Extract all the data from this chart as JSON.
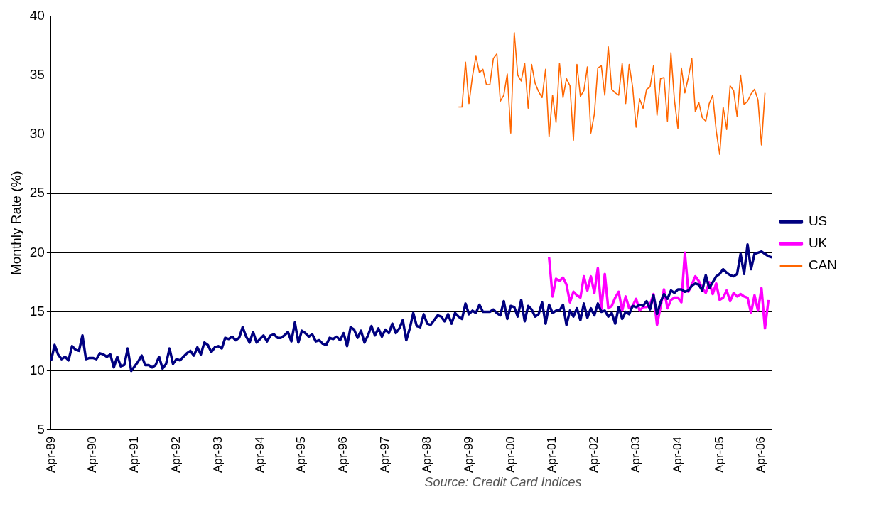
{
  "chart_data": {
    "type": "line",
    "ylabel": "Monthly Rate (%)",
    "ylim": [
      5,
      40
    ],
    "yticks": [
      5,
      10,
      15,
      20,
      25,
      30,
      35,
      40
    ],
    "grid": "y",
    "legend": "right",
    "marker": "none",
    "annotations": [
      "Source: Credit Card Indices"
    ],
    "categories": [
      "Apr-89",
      null,
      null,
      null,
      null,
      null,
      null,
      null,
      null,
      null,
      null,
      null,
      "Apr-90",
      null,
      null,
      null,
      null,
      null,
      null,
      null,
      null,
      null,
      null,
      null,
      "Apr-91",
      null,
      null,
      null,
      null,
      null,
      null,
      null,
      null,
      null,
      null,
      null,
      "Apr-92",
      null,
      null,
      null,
      null,
      null,
      null,
      null,
      null,
      null,
      null,
      null,
      "Apr-93",
      null,
      null,
      null,
      null,
      null,
      null,
      null,
      null,
      null,
      null,
      null,
      "Apr-94",
      null,
      null,
      null,
      null,
      null,
      null,
      null,
      null,
      null,
      null,
      null,
      "Apr-95",
      null,
      null,
      null,
      null,
      null,
      null,
      null,
      null,
      null,
      null,
      null,
      "Apr-96",
      null,
      null,
      null,
      null,
      null,
      null,
      null,
      null,
      null,
      null,
      null,
      "Apr-97",
      null,
      null,
      null,
      null,
      null,
      null,
      null,
      null,
      null,
      null,
      null,
      "Apr-98",
      null,
      null,
      null,
      null,
      null,
      null,
      null,
      null,
      null,
      null,
      null,
      "Apr-99",
      null,
      null,
      null,
      null,
      null,
      null,
      null,
      null,
      null,
      null,
      null,
      "Apr-00",
      null,
      null,
      null,
      null,
      null,
      null,
      null,
      null,
      null,
      null,
      null,
      "Apr-01",
      null,
      null,
      null,
      null,
      null,
      null,
      null,
      null,
      null,
      null,
      null,
      "Apr-02",
      null,
      null,
      null,
      null,
      null,
      null,
      null,
      null,
      null,
      null,
      null,
      "Apr-03",
      null,
      null,
      null,
      null,
      null,
      null,
      null,
      null,
      null,
      null,
      null,
      "Apr-04",
      null,
      null,
      null,
      null,
      null,
      null,
      null,
      null,
      null,
      null,
      null,
      "Apr-05",
      null,
      null,
      null,
      null,
      null,
      null,
      null,
      null,
      null,
      null,
      null,
      "Apr-06",
      null,
      null,
      null
    ],
    "series": [
      {
        "name": "US",
        "color": "#000080",
        "values": [
          10.9,
          12.2,
          11.4,
          11.0,
          11.2,
          10.9,
          12.1,
          11.8,
          11.7,
          13.0,
          11.0,
          11.1,
          11.1,
          11.0,
          11.5,
          11.4,
          11.2,
          11.4,
          10.3,
          11.2,
          10.4,
          10.5,
          11.9,
          10.0,
          10.4,
          10.8,
          11.3,
          10.5,
          10.5,
          10.3,
          10.5,
          11.2,
          10.2,
          10.6,
          11.9,
          10.6,
          11.0,
          10.9,
          11.2,
          11.5,
          11.7,
          11.3,
          12.0,
          11.4,
          12.4,
          12.2,
          11.6,
          12.0,
          12.1,
          11.9,
          12.8,
          12.7,
          12.9,
          12.6,
          12.8,
          13.7,
          12.9,
          12.4,
          13.3,
          12.4,
          12.7,
          13.0,
          12.5,
          13.0,
          13.1,
          12.8,
          12.8,
          13.0,
          13.3,
          12.5,
          14.1,
          12.4,
          13.4,
          13.2,
          12.9,
          13.1,
          12.5,
          12.6,
          12.3,
          12.2,
          12.8,
          12.7,
          12.9,
          12.6,
          13.2,
          12.1,
          13.7,
          13.5,
          12.8,
          13.4,
          12.4,
          13.0,
          13.8,
          13.0,
          13.6,
          12.9,
          13.5,
          13.2,
          14.0,
          13.2,
          13.6,
          14.3,
          12.6,
          13.6,
          14.9,
          13.8,
          13.7,
          14.8,
          14.0,
          13.9,
          14.3,
          14.7,
          14.6,
          14.2,
          14.8,
          14.0,
          14.9,
          14.6,
          14.4,
          15.7,
          14.8,
          15.1,
          14.9,
          15.6,
          15.0,
          15.0,
          15.0,
          15.2,
          14.9,
          14.7,
          15.9,
          14.4,
          15.5,
          15.4,
          14.6,
          16.0,
          14.2,
          15.5,
          15.2,
          14.6,
          14.8,
          15.8,
          14.0,
          15.6,
          14.9,
          15.1,
          15.1,
          15.6,
          13.9,
          15.1,
          14.6,
          15.3,
          14.3,
          15.7,
          14.5,
          15.3,
          14.7,
          15.7,
          15.0,
          15.1,
          14.6,
          14.9,
          14.0,
          15.4,
          14.4,
          15.0,
          14.8,
          15.5,
          15.4,
          15.6,
          15.5,
          15.9,
          15.2,
          16.4,
          14.8,
          15.8,
          16.5,
          16.1,
          16.8,
          16.6,
          16.9,
          16.9,
          16.7,
          16.8,
          17.2,
          17.4,
          17.3,
          16.8,
          18.1,
          17.0,
          17.5,
          18.0,
          18.2,
          18.6,
          18.3,
          18.1,
          18.0,
          18.2,
          19.9,
          18.2,
          20.7,
          18.6,
          19.9,
          20.0,
          20.1,
          19.9,
          19.7,
          19.6
        ]
      },
      {
        "name": "UK",
        "color": "#ff00ff",
        "values": [
          null,
          null,
          null,
          null,
          null,
          null,
          null,
          null,
          null,
          null,
          null,
          null,
          null,
          null,
          null,
          null,
          null,
          null,
          null,
          null,
          null,
          null,
          null,
          null,
          null,
          null,
          null,
          null,
          null,
          null,
          null,
          null,
          null,
          null,
          null,
          null,
          null,
          null,
          null,
          null,
          null,
          null,
          null,
          null,
          null,
          null,
          null,
          null,
          null,
          null,
          null,
          null,
          null,
          null,
          null,
          null,
          null,
          null,
          null,
          null,
          null,
          null,
          null,
          null,
          null,
          null,
          null,
          null,
          null,
          null,
          null,
          null,
          null,
          null,
          null,
          null,
          null,
          null,
          null,
          null,
          null,
          null,
          null,
          null,
          null,
          null,
          null,
          null,
          null,
          null,
          null,
          null,
          null,
          null,
          null,
          null,
          null,
          null,
          null,
          null,
          null,
          null,
          null,
          null,
          null,
          null,
          null,
          null,
          null,
          null,
          null,
          null,
          null,
          null,
          null,
          null,
          null,
          null,
          null,
          null,
          null,
          null,
          null,
          null,
          null,
          null,
          null,
          null,
          null,
          null,
          null,
          null,
          null,
          null,
          null,
          null,
          null,
          null,
          null,
          null,
          null,
          null,
          null,
          19.6,
          16.3,
          17.8,
          17.6,
          17.9,
          17.3,
          15.8,
          16.7,
          16.4,
          16.2,
          18.0,
          16.8,
          18.0,
          16.6,
          18.7,
          15.2,
          18.2,
          15.3,
          15.5,
          16.2,
          16.7,
          15.1,
          16.3,
          15.3,
          15.5,
          16.1,
          15.1,
          15.4,
          15.4,
          15.6,
          16.5,
          13.9,
          15.4,
          16.9,
          15.3,
          16.0,
          16.2,
          16.2,
          15.8,
          20.0,
          16.7,
          17.3,
          18.0,
          17.6,
          17.0,
          16.6,
          17.5,
          16.5,
          17.4,
          16.0,
          16.2,
          16.8,
          15.9,
          16.6,
          16.3,
          16.5,
          16.3,
          16.2,
          14.9,
          16.4,
          15.1,
          17.0,
          13.6,
          16.0,
          null
        ]
      },
      {
        "name": "CAN",
        "color": "#ff6600",
        "values": [
          null,
          null,
          null,
          null,
          null,
          null,
          null,
          null,
          null,
          null,
          null,
          null,
          null,
          null,
          null,
          null,
          null,
          null,
          null,
          null,
          null,
          null,
          null,
          null,
          null,
          null,
          null,
          null,
          null,
          null,
          null,
          null,
          null,
          null,
          null,
          null,
          null,
          null,
          null,
          null,
          null,
          null,
          null,
          null,
          null,
          null,
          null,
          null,
          null,
          null,
          null,
          null,
          null,
          null,
          null,
          null,
          null,
          null,
          null,
          null,
          null,
          null,
          null,
          null,
          null,
          null,
          null,
          null,
          null,
          null,
          null,
          null,
          null,
          null,
          null,
          null,
          null,
          null,
          null,
          null,
          null,
          null,
          null,
          null,
          null,
          null,
          null,
          null,
          null,
          null,
          null,
          null,
          null,
          null,
          null,
          null,
          null,
          null,
          null,
          null,
          null,
          null,
          null,
          null,
          null,
          null,
          null,
          null,
          null,
          null,
          null,
          null,
          null,
          null,
          null,
          null,
          null,
          32.3,
          32.3,
          36.1,
          32.6,
          34.9,
          36.6,
          35.2,
          35.5,
          34.2,
          34.2,
          36.4,
          36.8,
          32.8,
          33.3,
          35.1,
          30.1,
          38.6,
          35.0,
          34.5,
          36.0,
          32.2,
          35.9,
          34.3,
          33.6,
          33.1,
          35.5,
          29.8,
          33.3,
          31.0,
          36.0,
          33.1,
          34.7,
          34.1,
          29.5,
          35.9,
          33.2,
          33.7,
          35.7,
          30.1,
          31.7,
          35.6,
          35.8,
          33.3,
          37.4,
          33.8,
          33.5,
          33.3,
          36.0,
          32.6,
          35.9,
          34.0,
          30.6,
          33.0,
          32.2,
          33.8,
          34.0,
          35.8,
          31.6,
          34.7,
          34.8,
          31.1,
          36.9,
          32.9,
          30.5,
          35.6,
          33.5,
          34.8,
          36.4,
          31.9,
          32.7,
          31.4,
          31.1,
          32.6,
          33.3,
          30.3,
          28.3,
          32.3,
          30.4,
          34.1,
          33.7,
          31.5,
          35.0,
          32.5,
          32.8,
          33.4,
          33.8,
          32.9,
          29.1,
          33.5,
          null,
          null
        ]
      }
    ]
  }
}
